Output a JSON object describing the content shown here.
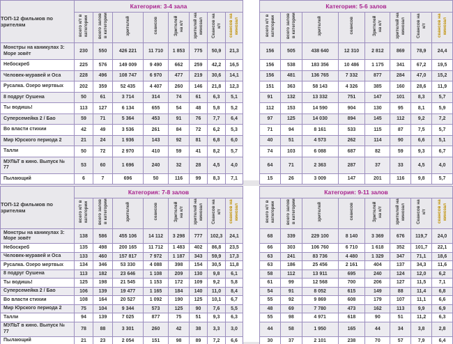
{
  "corner_label": "ТОП-12 фильмов по зрителям",
  "films": [
    "Монстры на каникулах 3: Море зовёт",
    "Небоскреб",
    "Человек-муравей и Оса",
    "Русалка. Озеро мертвых",
    "8 подруг Оушена",
    "Ты водишь!",
    "Суперсемейка 2 / Бао",
    "Во власти стихии",
    "Мир Юрского периода 2",
    "Талли",
    "МУЛЬТ в кино. Выпуск № 77",
    "Пылающий"
  ],
  "column_headers": [
    "всего к/т в категории",
    "всего залов в категории",
    "зрителей",
    "сеансов",
    "Зрителей на к/т",
    "зрителей на кинозал",
    "Сеансов на к/т",
    "сеансов на кинозал"
  ],
  "tables": [
    {
      "title": "Категория: 3-4 зала",
      "rows": [
        [
          "230",
          "550",
          "426 221",
          "11 710",
          "1 853",
          "775",
          "50,9",
          "21,3"
        ],
        [
          "225",
          "576",
          "149 009",
          "9 490",
          "662",
          "259",
          "42,2",
          "16,5"
        ],
        [
          "228",
          "496",
          "108 747",
          "6 970",
          "477",
          "219",
          "30,6",
          "14,1"
        ],
        [
          "202",
          "359",
          "52 435",
          "4 407",
          "260",
          "146",
          "21,8",
          "12,3"
        ],
        [
          "50",
          "61",
          "3 714",
          "314",
          "74",
          "61",
          "6,3",
          "5,1"
        ],
        [
          "113",
          "127",
          "6 134",
          "655",
          "54",
          "48",
          "5,8",
          "5,2"
        ],
        [
          "59",
          "71",
          "5 364",
          "453",
          "91",
          "76",
          "7,7",
          "6,4"
        ],
        [
          "42",
          "49",
          "3 536",
          "261",
          "84",
          "72",
          "6,2",
          "5,3"
        ],
        [
          "21",
          "24",
          "1 936",
          "143",
          "92",
          "81",
          "6,8",
          "6,0"
        ],
        [
          "50",
          "72",
          "2 970",
          "410",
          "59",
          "41",
          "8,2",
          "5,7"
        ],
        [
          "53",
          "60",
          "1 696",
          "240",
          "32",
          "28",
          "4,5",
          "4,0"
        ],
        [
          "6",
          "7",
          "696",
          "50",
          "116",
          "99",
          "8,3",
          "7,1"
        ]
      ]
    },
    {
      "title": "Категория: 5-6 залов",
      "rows": [
        [
          "156",
          "505",
          "438 640",
          "12 310",
          "2 812",
          "869",
          "78,9",
          "24,4"
        ],
        [
          "156",
          "538",
          "183 356",
          "10 486",
          "1 175",
          "341",
          "67,2",
          "19,5"
        ],
        [
          "156",
          "481",
          "136 765",
          "7 332",
          "877",
          "284",
          "47,0",
          "15,2"
        ],
        [
          "151",
          "363",
          "58 143",
          "4 326",
          "385",
          "160",
          "28,6",
          "11,9"
        ],
        [
          "91",
          "132",
          "13 332",
          "751",
          "147",
          "101",
          "8,3",
          "5,7"
        ],
        [
          "112",
          "153",
          "14 590",
          "904",
          "130",
          "95",
          "8,1",
          "5,9"
        ],
        [
          "97",
          "125",
          "14 030",
          "894",
          "145",
          "112",
          "9,2",
          "7,2"
        ],
        [
          "71",
          "94",
          "8 161",
          "533",
          "115",
          "87",
          "7,5",
          "5,7"
        ],
        [
          "40",
          "51",
          "4 573",
          "262",
          "114",
          "90",
          "6,6",
          "5,1"
        ],
        [
          "74",
          "103",
          "6 088",
          "687",
          "82",
          "59",
          "9,3",
          "6,7"
        ],
        [
          "64",
          "71",
          "2 363",
          "287",
          "37",
          "33",
          "4,5",
          "4,0"
        ],
        [
          "15",
          "26",
          "3 009",
          "147",
          "201",
          "116",
          "9,8",
          "5,7"
        ]
      ]
    },
    {
      "title": "Категория: 7-8 залов",
      "rows": [
        [
          "138",
          "586",
          "455 106",
          "14 112",
          "3 298",
          "777",
          "102,3",
          "24,1"
        ],
        [
          "135",
          "498",
          "200 165",
          "11 712",
          "1 483",
          "402",
          "86,8",
          "23,5"
        ],
        [
          "133",
          "460",
          "157 817",
          "7 972",
          "1 187",
          "343",
          "59,9",
          "17,3"
        ],
        [
          "134",
          "346",
          "53 330",
          "4 088",
          "398",
          "154",
          "30,5",
          "11,8"
        ],
        [
          "113",
          "182",
          "23 646",
          "1 108",
          "209",
          "130",
          "9,8",
          "6,1"
        ],
        [
          "125",
          "198",
          "21 545",
          "1 153",
          "172",
          "109",
          "9,2",
          "5,8"
        ],
        [
          "106",
          "139",
          "19 477",
          "1 165",
          "184",
          "140",
          "11,0",
          "8,4"
        ],
        [
          "108",
          "164",
          "20 527",
          "1 092",
          "190",
          "125",
          "10,1",
          "6,7"
        ],
        [
          "75",
          "104",
          "9 344",
          "573",
          "125",
          "90",
          "7,6",
          "5,5"
        ],
        [
          "94",
          "139",
          "7 025",
          "877",
          "75",
          "51",
          "9,3",
          "6,3"
        ],
        [
          "78",
          "88",
          "3 301",
          "260",
          "42",
          "38",
          "3,3",
          "3,0"
        ],
        [
          "21",
          "23",
          "2 054",
          "151",
          "98",
          "89",
          "7,2",
          "6,6"
        ]
      ]
    },
    {
      "title": "Категория: 9-11 залов",
      "rows": [
        [
          "68",
          "339",
          "229 100",
          "8 140",
          "3 369",
          "676",
          "119,7",
          "24,0"
        ],
        [
          "66",
          "303",
          "106 760",
          "6 710",
          "1 618",
          "352",
          "101,7",
          "22,1"
        ],
        [
          "63",
          "241",
          "83 736",
          "4 480",
          "1 329",
          "347",
          "71,1",
          "18,6"
        ],
        [
          "63",
          "186",
          "25 456",
          "2 161",
          "404",
          "137",
          "34,3",
          "11,6"
        ],
        [
          "58",
          "112",
          "13 911",
          "695",
          "240",
          "124",
          "12,0",
          "6,2"
        ],
        [
          "61",
          "99",
          "12 568",
          "700",
          "206",
          "127",
          "11,5",
          "7,1"
        ],
        [
          "54",
          "91",
          "8 052",
          "615",
          "149",
          "88",
          "11,4",
          "6,8"
        ],
        [
          "55",
          "92",
          "9 869",
          "608",
          "179",
          "107",
          "11,1",
          "6,6"
        ],
        [
          "48",
          "69",
          "7 780",
          "473",
          "162",
          "113",
          "9,9",
          "6,9"
        ],
        [
          "55",
          "98",
          "4 971",
          "618",
          "90",
          "51",
          "11,2",
          "6,3"
        ],
        [
          "44",
          "58",
          "1 950",
          "165",
          "44",
          "34",
          "3,8",
          "2,8"
        ],
        [
          "30",
          "37",
          "2 101",
          "238",
          "70",
          "57",
          "7,9",
          "6,4"
        ]
      ]
    }
  ],
  "colors": {
    "magenta": "#A8238E",
    "border": "#9B8DBE",
    "border-dark": "#7A68A6",
    "head-bg": "#E9E8EC",
    "alt-bg": "#ECEBF0",
    "accent": "#BF8F00",
    "text": "#333333",
    "htext": "#3F3F3F"
  }
}
